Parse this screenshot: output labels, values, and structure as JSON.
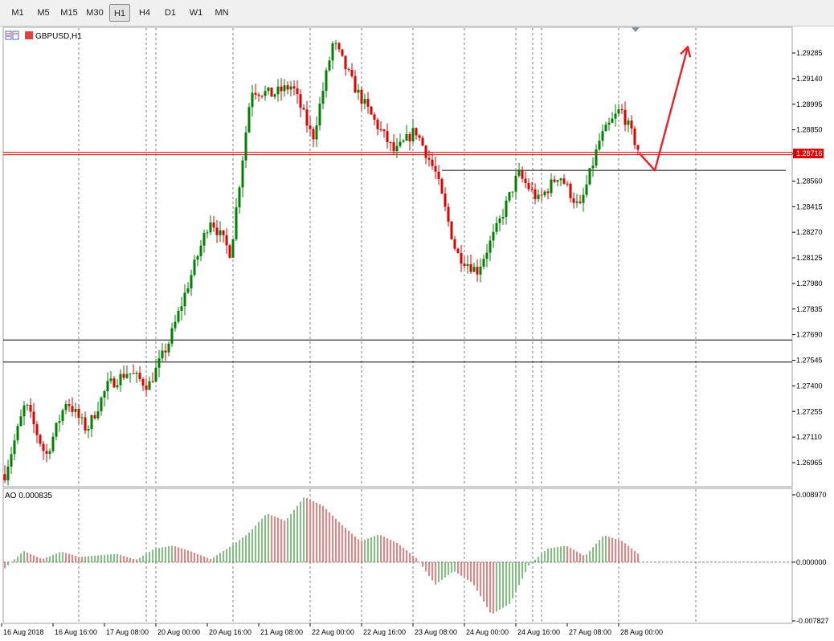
{
  "toolbar": {
    "timeframes": [
      "M1",
      "M5",
      "M15",
      "M30",
      "H1",
      "H4",
      "D1",
      "W1",
      "MN"
    ],
    "active": "H1"
  },
  "symbol_label": "GBPUSD,H1",
  "current_price": "1.28716",
  "indicator_label": "AO 0.000835",
  "colors": {
    "up": "#008000",
    "down": "#e00000",
    "price_line": "#e00000",
    "arrow": "#e8202a"
  },
  "chart_data": [
    {
      "type": "candlestick",
      "title": "GBPUSD,H1",
      "y_ticks": [
        "1.29285",
        "1.29140",
        "1.28995",
        "1.28850",
        "1.28716",
        "1.28560",
        "1.28415",
        "1.28270",
        "1.28125",
        "1.27980",
        "1.27835",
        "1.27690",
        "1.27545",
        "1.27400",
        "1.27255",
        "1.27110",
        "1.26965"
      ],
      "ylim": [
        1.2685,
        1.2939
      ],
      "x_ticks": [
        "16 Aug 2018",
        "16 Aug 16:00",
        "17 Aug 08:00",
        "20 Aug 00:00",
        "20 Aug 16:00",
        "21 Aug 08:00",
        "22 Aug 00:00",
        "22 Aug 16:00",
        "23 Aug 08:00",
        "24 Aug 00:00",
        "24 Aug 16:00",
        "27 Aug 08:00",
        "28 Aug 00:00"
      ],
      "current_price": 1.28716,
      "horizontal_levels": [
        1.2766,
        1.27535,
        1.2862
      ],
      "forecast_path": [
        1.28716,
        1.2862,
        1.2932
      ],
      "anchors": [
        1.269,
        1.273,
        1.27,
        1.2732,
        1.2715,
        1.274,
        1.2748,
        1.274,
        1.2765,
        1.28,
        1.2835,
        1.2815,
        1.2908,
        1.2905,
        1.291,
        1.288,
        1.2935,
        1.291,
        1.289,
        1.2872,
        1.2885,
        1.286,
        1.2815,
        1.2805,
        1.283,
        1.286,
        1.2845,
        1.286,
        1.284,
        1.288,
        1.2897,
        1.287
      ]
    },
    {
      "type": "bar",
      "title": "AO 0.000835",
      "y_ticks": [
        "0.008970",
        "0.000000",
        "-0.007827"
      ],
      "ylim": [
        -0.0083,
        0.0093
      ],
      "anchors": [
        -0.0008,
        0.0015,
        0.0004,
        0.0014,
        0.0007,
        0.0009,
        0.0011,
        0.0003,
        0.0018,
        0.0022,
        0.0014,
        0.0004,
        0.002,
        0.0038,
        0.0065,
        0.0055,
        0.0087,
        0.0075,
        0.005,
        0.0028,
        0.0037,
        0.0025,
        0.0005,
        -0.003,
        -0.0012,
        -0.0028,
        -0.007,
        -0.0055,
        -0.0004,
        0.0018,
        0.0022,
        0.0008,
        0.0036,
        0.0028,
        0.0008
      ]
    }
  ]
}
